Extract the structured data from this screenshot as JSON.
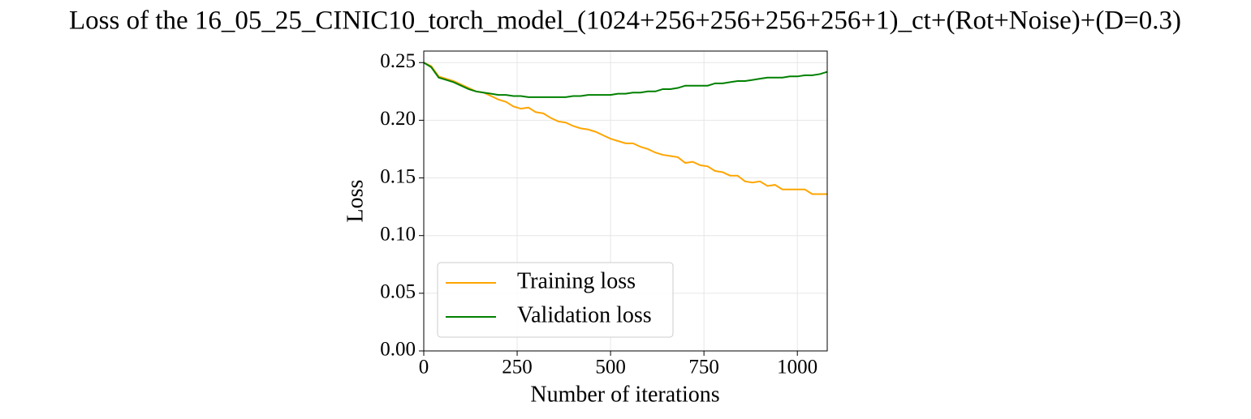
{
  "chart_data": {
    "type": "line",
    "title": "Loss of the 16_05_25_CINIC10_torch_model_(1024+256+256+256+256+1)_ct+(Rot+Noise)+(D=0.3)",
    "xlabel": "Number of iterations",
    "ylabel": "Loss",
    "x": [
      0,
      20,
      40,
      60,
      80,
      100,
      120,
      140,
      160,
      180,
      200,
      220,
      240,
      260,
      280,
      300,
      320,
      340,
      360,
      380,
      400,
      420,
      440,
      460,
      480,
      500,
      520,
      540,
      560,
      580,
      600,
      620,
      640,
      660,
      680,
      700,
      720,
      740,
      760,
      780,
      800,
      820,
      840,
      860,
      880,
      900,
      920,
      940,
      960,
      980,
      1000,
      1020,
      1040,
      1060,
      1080
    ],
    "series": [
      {
        "name": "Training loss",
        "color": "#FFA500",
        "values": [
          0.25,
          0.247,
          0.238,
          0.236,
          0.234,
          0.231,
          0.228,
          0.225,
          0.224,
          0.221,
          0.218,
          0.216,
          0.212,
          0.21,
          0.211,
          0.207,
          0.206,
          0.202,
          0.199,
          0.198,
          0.195,
          0.193,
          0.192,
          0.19,
          0.187,
          0.184,
          0.182,
          0.18,
          0.18,
          0.177,
          0.175,
          0.172,
          0.17,
          0.169,
          0.168,
          0.163,
          0.164,
          0.161,
          0.16,
          0.156,
          0.155,
          0.152,
          0.152,
          0.147,
          0.146,
          0.147,
          0.143,
          0.144,
          0.14,
          0.14,
          0.14,
          0.14,
          0.136,
          0.136,
          0.136
        ]
      },
      {
        "name": "Validation loss",
        "color": "#008000",
        "values": [
          0.25,
          0.246,
          0.237,
          0.235,
          0.233,
          0.23,
          0.227,
          0.225,
          0.224,
          0.223,
          0.222,
          0.222,
          0.221,
          0.221,
          0.22,
          0.22,
          0.22,
          0.22,
          0.22,
          0.22,
          0.221,
          0.221,
          0.222,
          0.222,
          0.222,
          0.222,
          0.223,
          0.223,
          0.224,
          0.224,
          0.225,
          0.225,
          0.227,
          0.227,
          0.228,
          0.23,
          0.23,
          0.23,
          0.23,
          0.232,
          0.232,
          0.233,
          0.234,
          0.234,
          0.235,
          0.236,
          0.237,
          0.237,
          0.237,
          0.238,
          0.238,
          0.239,
          0.239,
          0.24,
          0.242
        ]
      }
    ],
    "xlim": [
      0,
      1080
    ],
    "ylim": [
      0,
      0.26
    ],
    "xticks": [
      0,
      250,
      500,
      750,
      1000
    ],
    "yticks": [
      {
        "value": 0,
        "label": "0.00"
      },
      {
        "value": 0.05,
        "label": "0.05"
      },
      {
        "value": 0.1,
        "label": "0.10"
      },
      {
        "value": 0.15,
        "label": "0.15"
      },
      {
        "value": 0.2,
        "label": "0.20"
      },
      {
        "value": 0.25,
        "label": "0.25"
      }
    ],
    "grid": true,
    "legend": "lower left"
  }
}
